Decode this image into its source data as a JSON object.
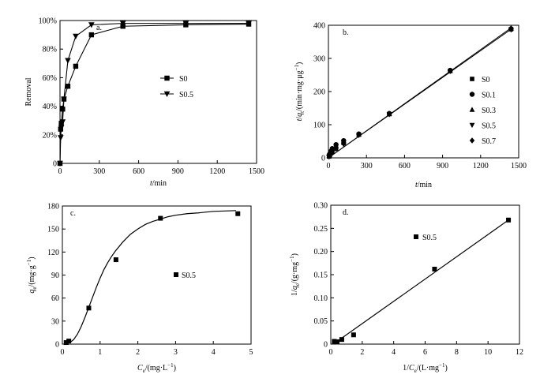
{
  "chart_data": [
    {
      "panel": "a.",
      "type": "line",
      "xlabel_var": "t",
      "xlabel_unit": "/min",
      "ylabel": "Removal",
      "xlim": [
        0,
        1500
      ],
      "ylim": [
        0,
        100
      ],
      "x_ticks": [
        0,
        300,
        600,
        900,
        1200,
        1500
      ],
      "y_ticks": [
        0,
        20,
        40,
        60,
        80,
        100
      ],
      "y_tick_labels": [
        "0",
        "20%",
        "40%",
        "60%",
        "80%",
        "100%"
      ],
      "legend_position": "center-right",
      "series": [
        {
          "name": "S0",
          "marker": "square",
          "x": [
            0,
            5,
            10,
            20,
            30,
            60,
            120,
            240,
            480,
            960,
            1440
          ],
          "y": [
            0,
            24,
            28,
            38,
            45,
            54,
            68,
            90,
            96,
            97,
            97.5
          ]
        },
        {
          "name": "S0.5",
          "marker": "triangle-down",
          "x": [
            0,
            5,
            10,
            20,
            30,
            60,
            120,
            240,
            480,
            960,
            1440
          ],
          "y": [
            0,
            18,
            25,
            29,
            45,
            72,
            89,
            97,
            98,
            98,
            98
          ]
        }
      ]
    },
    {
      "panel": "b.",
      "type": "scatter",
      "xlabel_var": "t",
      "xlabel_unit": "/min",
      "ylabel_parts": [
        "t",
        "/",
        "q",
        "t",
        "/(min·mg·μg",
        "−1",
        ")"
      ],
      "xlim": [
        0,
        1500
      ],
      "ylim": [
        0,
        400
      ],
      "x_ticks": [
        0,
        300,
        600,
        900,
        1200,
        1500
      ],
      "y_ticks": [
        0,
        100,
        200,
        300,
        400
      ],
      "legend_position": "right",
      "fit_lines": [
        {
          "x": [
            0,
            1440
          ],
          "y": [
            0,
            388
          ]
        },
        {
          "x": [
            0,
            1440
          ],
          "y": [
            0,
            392
          ]
        }
      ],
      "series": [
        {
          "name": "S0",
          "marker": "square",
          "x": [
            5,
            10,
            20,
            30,
            60,
            120,
            240,
            480,
            960,
            1440
          ],
          "y": [
            4,
            8,
            14,
            18,
            28,
            45,
            70,
            132,
            262,
            388
          ]
        },
        {
          "name": "S0.1",
          "marker": "circle",
          "x": [
            5,
            10,
            20,
            30,
            60,
            120,
            240,
            480,
            960,
            1440
          ],
          "y": [
            8,
            12,
            20,
            28,
            40,
            52,
            72,
            134,
            264,
            389
          ]
        },
        {
          "name": "S0.3",
          "marker": "triangle-up",
          "x": [
            5,
            10,
            20,
            30,
            60,
            120,
            240,
            480,
            960,
            1440
          ],
          "y": [
            6,
            10,
            18,
            24,
            34,
            48,
            71,
            133,
            263,
            390
          ]
        },
        {
          "name": "S0.5",
          "marker": "triangle-down",
          "x": [
            5,
            10,
            20,
            30,
            60,
            120,
            240,
            480,
            960,
            1440
          ],
          "y": [
            3,
            6,
            12,
            18,
            26,
            40,
            68,
            131,
            261,
            386
          ]
        },
        {
          "name": "S0.7",
          "marker": "diamond",
          "x": [
            5,
            10,
            20,
            30,
            60,
            120,
            240,
            480,
            960,
            1440
          ],
          "y": [
            5,
            9,
            16,
            22,
            32,
            44,
            70,
            132,
            262,
            391
          ]
        }
      ]
    },
    {
      "panel": "c.",
      "type": "scatter",
      "xlabel_parts": [
        "C",
        "e",
        "/(mg·L",
        "−1",
        ")"
      ],
      "ylabel_parts": [
        "q",
        "e",
        "/(mg·g",
        "−1",
        ")"
      ],
      "xlim": [
        0,
        5
      ],
      "ylim": [
        0,
        180
      ],
      "x_ticks": [
        0,
        1,
        2,
        3,
        4,
        5
      ],
      "y_ticks": [
        0,
        30,
        60,
        90,
        120,
        150,
        180
      ],
      "legend_position": "center-right",
      "fit_curve": {
        "x": [
          0.05,
          0.1,
          0.2,
          0.3,
          0.4,
          0.5,
          0.6,
          0.7,
          0.8,
          0.9,
          1.0,
          1.1,
          1.2,
          1.3,
          1.4,
          1.6,
          1.8,
          2.0,
          2.2,
          2.4,
          2.6,
          2.8,
          3.0,
          3.3,
          3.6,
          4.0,
          4.3,
          4.6
        ],
        "y": [
          0,
          0.5,
          2,
          6,
          13,
          23,
          35,
          48,
          61,
          74,
          86,
          97,
          106,
          114,
          121,
          133,
          143,
          150,
          156,
          160,
          163,
          166,
          168,
          170,
          171,
          173,
          173.5,
          174
        ]
      },
      "series": [
        {
          "name": "S0.5",
          "marker": "square",
          "x": [
            0.1,
            0.17,
            0.7,
            1.42,
            2.6,
            4.65
          ],
          "y": [
            2,
            4,
            47,
            110,
            164,
            170
          ]
        }
      ]
    },
    {
      "panel": "d.",
      "type": "scatter",
      "xlabel_parts": [
        "1/",
        "C",
        "e",
        "/(L·mg",
        "−1",
        ")"
      ],
      "ylabel_parts": [
        "1/",
        "q",
        "e",
        "/(g·mg",
        "−1",
        ")"
      ],
      "xlim": [
        0,
        12
      ],
      "ylim": [
        0,
        0.3
      ],
      "x_ticks": [
        0,
        2,
        4,
        6,
        8,
        10,
        12
      ],
      "y_ticks": [
        0,
        0.05,
        0.1,
        0.15,
        0.2,
        0.25,
        0.3
      ],
      "y_tick_labels": [
        "0",
        "0.05",
        "0.10",
        "0.15",
        "0.20",
        "0.25",
        "0.30"
      ],
      "legend_position": "top-center",
      "fit_line": {
        "x": [
          0.2,
          11.3
        ],
        "y": [
          0.001,
          0.268
        ]
      },
      "series": [
        {
          "name": "S0.5",
          "marker": "square",
          "x": [
            0.22,
            0.4,
            0.7,
            1.45,
            6.6,
            11.3
          ],
          "y": [
            0.006,
            0.005,
            0.01,
            0.02,
            0.162,
            0.268
          ]
        }
      ]
    }
  ]
}
